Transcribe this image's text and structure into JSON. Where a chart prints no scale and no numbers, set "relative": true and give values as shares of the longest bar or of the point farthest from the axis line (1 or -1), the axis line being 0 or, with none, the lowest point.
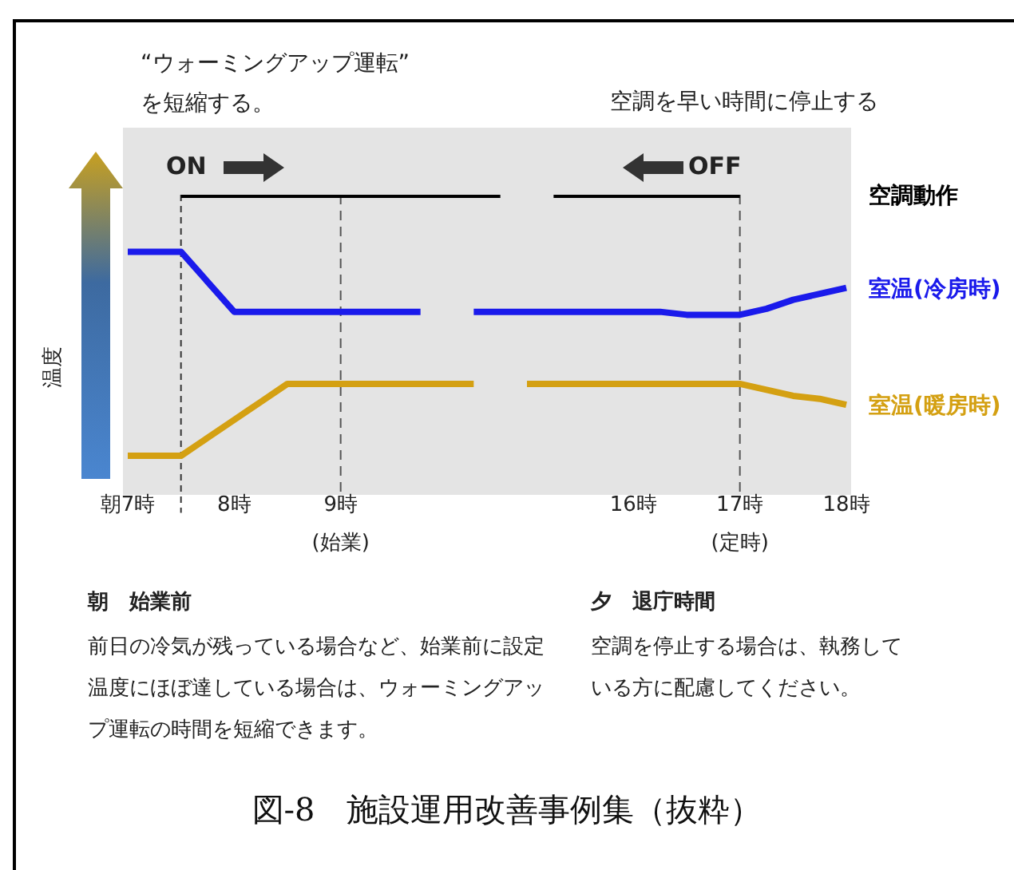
{
  "chart_data": {
    "type": "line",
    "relative": true,
    "title": "図-8　施設運用改善事例集（抜粋）",
    "ylabel": "温度",
    "categories": [
      "朝7時",
      null,
      null,
      null,
      "8時",
      null,
      null,
      null,
      "9時\n(始業)",
      null,
      null,
      null,
      null,
      null,
      null,
      null,
      null,
      null,
      null,
      "16時",
      null,
      null,
      null,
      "17時\n(定時)",
      null,
      null,
      null,
      "18時"
    ],
    "series": [
      {
        "name": "空調動作",
        "color": "#000000",
        "values": [
          null,
          null,
          1,
          1,
          1,
          1,
          1,
          1,
          1,
          1,
          1,
          1,
          1,
          1,
          1,
          null,
          1,
          1,
          1,
          1,
          1,
          1,
          1,
          1,
          null,
          null,
          null,
          null
        ]
      },
      {
        "name": "室温(冷房時)",
        "color": "#1a1aeb",
        "values": [
          0.81,
          0.81,
          0.81,
          0.71,
          0.61,
          0.61,
          0.61,
          0.61,
          0.61,
          0.61,
          0.61,
          0.61,
          null,
          0.61,
          0.61,
          0.61,
          0.61,
          0.61,
          0.61,
          0.61,
          0.61,
          0.6,
          0.6,
          0.6,
          0.62,
          0.65,
          0.67,
          0.69
        ]
      },
      {
        "name": "室温(暖房時)",
        "color": "#d4a012",
        "values": [
          0.13,
          0.13,
          0.13,
          0.19,
          0.25,
          0.31,
          0.37,
          0.37,
          0.37,
          0.37,
          0.37,
          0.37,
          0.37,
          0.37,
          null,
          0.37,
          0.37,
          0.37,
          0.37,
          0.37,
          0.37,
          0.37,
          0.37,
          0.37,
          0.35,
          0.33,
          0.32,
          0.3
        ]
      }
    ],
    "ref_lines": [
      {
        "axis": "x",
        "value": "9時\n(始業)",
        "line_style": "dashed"
      },
      {
        "axis": "x",
        "value": "17時\n(定時)",
        "line_style": "dashed"
      }
    ],
    "annotations": [
      "“ウォーミングアップ運転”\nを短縮する。",
      "空調を早い時間に停止する",
      "ON",
      "OFF",
      "朝　始業前",
      "前日の冷気が残っている場合など、始業前に設定温度にほぼ達している場合は、ウォーミングアップ運転の時間を短縮できます。",
      "夕　退庁時間",
      "空調を停止する場合は、執務している方に配慮してください。"
    ],
    "legend": false,
    "grid": false,
    "marker": "none",
    "line_style": "solid"
  }
}
